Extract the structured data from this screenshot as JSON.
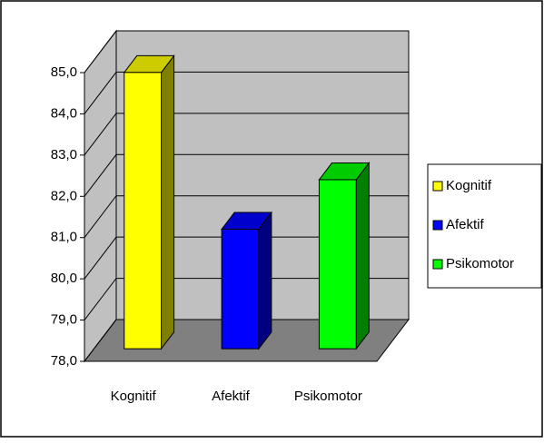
{
  "chart_data": {
    "type": "bar3d",
    "categories": [
      "Kognitif",
      "Afektif",
      "Psikomotor"
    ],
    "values": [
      84.7,
      80.9,
      82.1
    ],
    "colors": [
      "#ffff00",
      "#0000ff",
      "#00ff00"
    ],
    "ylim": [
      78,
      85
    ],
    "yticks": [
      {
        "value": 78,
        "label": "78,0"
      },
      {
        "value": 79,
        "label": "79,0"
      },
      {
        "value": 80,
        "label": "80,0"
      },
      {
        "value": 81,
        "label": "81,0"
      },
      {
        "value": 82,
        "label": "82,0"
      },
      {
        "value": 83,
        "label": "83,0"
      },
      {
        "value": 84,
        "label": "84,0"
      },
      {
        "value": 85,
        "label": "85,0"
      }
    ],
    "grid": true,
    "legend": "right"
  }
}
